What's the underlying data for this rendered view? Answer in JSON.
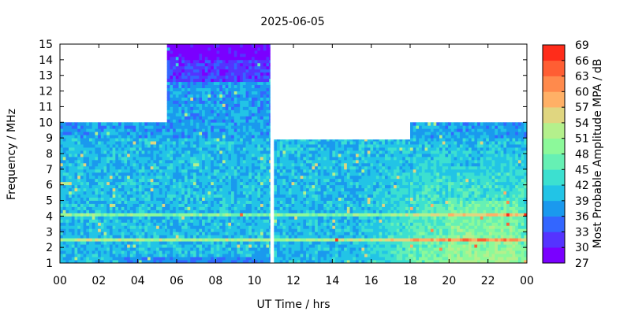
{
  "chart_data": {
    "type": "heatmap",
    "title": "2025-06-05",
    "xlabel": "UT Time / hrs",
    "ylabel": "Frequency / MHz",
    "xlim": [
      0,
      24
    ],
    "ylim": [
      1,
      15
    ],
    "x_ticks": [
      "00",
      "02",
      "04",
      "06",
      "08",
      "10",
      "12",
      "14",
      "16",
      "18",
      "20",
      "22",
      "00"
    ],
    "y_ticks": [
      "1",
      "2",
      "3",
      "4",
      "5",
      "6",
      "7",
      "8",
      "9",
      "10",
      "11",
      "12",
      "13",
      "14",
      "15"
    ],
    "colorbar": {
      "label": "Most Probable Amplitude MPA / dB",
      "range": [
        27,
        69
      ],
      "ticks": [
        "27",
        "30",
        "33",
        "36",
        "39",
        "42",
        "45",
        "48",
        "51",
        "54",
        "57",
        "60",
        "63",
        "66",
        "69"
      ],
      "colors": [
        "#7a00ff",
        "#5533ff",
        "#3366ff",
        "#1a99ee",
        "#22c4e6",
        "#3ce0d0",
        "#66f0b4",
        "#8cf99a",
        "#b4f08c",
        "#e0d680",
        "#ffb066",
        "#ff8a4c",
        "#ff5e33",
        "#ff2c1a"
      ]
    },
    "segments": [
      {
        "x_start": 0.0,
        "x_end": 5.5,
        "freq_max": 10.0
      },
      {
        "x_start": 5.5,
        "x_end": 10.8,
        "freq_max": 15.0
      },
      {
        "x_start": 11.0,
        "x_end": 18.0,
        "freq_max": 8.9
      },
      {
        "x_start": 18.0,
        "x_end": 24.0,
        "freq_max": 10.0
      }
    ],
    "data_gap": [
      10.8,
      11.0
    ],
    "approx_mpa_db": {
      "low_band_1_to_2_MHz": 40,
      "mid_band_2_to_9_MHz": 40,
      "evening_enhancement_19_to_23h": 48,
      "high_band_13_to_15_MHz_06_to_11h": 30
    }
  }
}
